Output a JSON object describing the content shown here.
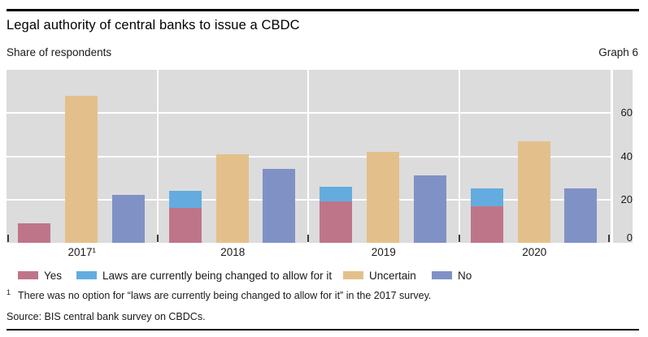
{
  "header": {
    "title": "Legal authority of central banks to issue a CBDC",
    "subtitle_left": "Share of respondents",
    "subtitle_right": "Graph 6"
  },
  "chart_data": {
    "type": "bar",
    "categories": [
      "2017¹",
      "2018",
      "2019",
      "2020"
    ],
    "series": [
      {
        "name": "Yes",
        "color": "#bf7589",
        "slot": 0,
        "values": [
          9,
          16,
          19,
          17
        ]
      },
      {
        "name": "Laws are currently being changed to allow for it",
        "color": "#64acdf",
        "slot": 0,
        "stacked_on_previous": true,
        "values": [
          null,
          8,
          7,
          8
        ]
      },
      {
        "name": "Uncertain",
        "color": "#e3c08b",
        "slot": 1,
        "values": [
          68,
          41,
          42,
          47
        ]
      },
      {
        "name": "No",
        "color": "#8091c6",
        "slot": 2,
        "values": [
          22,
          34,
          31,
          25
        ]
      }
    ],
    "title": "Legal authority of central banks to issue a CBDC",
    "xlabel": "",
    "ylabel": "Share of respondents",
    "yticks": [
      0,
      20,
      40,
      60
    ],
    "ylim": [
      0,
      80
    ],
    "grid": true,
    "legend_position": "bottom",
    "panel_color": "#dcdcdc",
    "note": "In 2017 the 'laws are currently being changed' option did not exist, so 2017 has no blue segment"
  },
  "footnote": {
    "marker": "1",
    "text": "There was no option for “laws are currently being changed to allow for it” in the 2017 survey."
  },
  "source_line": "Source: BIS central bank survey on CBDCs."
}
